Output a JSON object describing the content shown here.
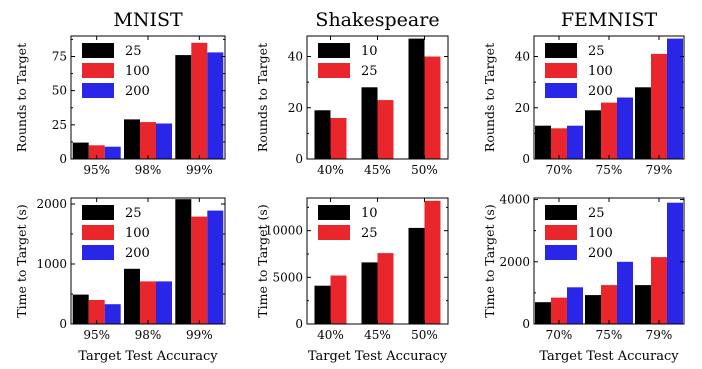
{
  "colors": {
    "black": "#000000",
    "red": "#e8262b",
    "blue": "#2a26e8"
  },
  "chart_data": [
    {
      "type": "bar",
      "title": "MNIST",
      "ylabel": "Rounds to Target",
      "xlabel": "",
      "categories": [
        "95%",
        "98%",
        "99%"
      ],
      "series": [
        {
          "name": "25",
          "values": [
            12,
            29,
            76
          ]
        },
        {
          "name": "100",
          "values": [
            10,
            27,
            85
          ]
        },
        {
          "name": "200",
          "values": [
            9,
            26,
            78
          ]
        }
      ],
      "ylim": [
        0,
        90
      ],
      "yticks": [
        0,
        25,
        50,
        75
      ],
      "legend": "top-left"
    },
    {
      "type": "bar",
      "title": "Shakespeare",
      "ylabel": "Rounds to Target",
      "xlabel": "",
      "categories": [
        "40%",
        "45%",
        "50%"
      ],
      "series": [
        {
          "name": "10",
          "values": [
            19,
            28,
            47
          ]
        },
        {
          "name": "25",
          "values": [
            16,
            23,
            40
          ]
        }
      ],
      "ylim": [
        0,
        48
      ],
      "yticks": [
        0,
        20,
        40
      ],
      "legend": "top-left"
    },
    {
      "type": "bar",
      "title": "FEMNIST",
      "ylabel": "Rounds to Target",
      "xlabel": "",
      "categories": [
        "70%",
        "75%",
        "79%"
      ],
      "series": [
        {
          "name": "25",
          "values": [
            13,
            19,
            28
          ]
        },
        {
          "name": "100",
          "values": [
            12,
            22,
            41
          ]
        },
        {
          "name": "200",
          "values": [
            13,
            24,
            47
          ]
        }
      ],
      "ylim": [
        0,
        48
      ],
      "yticks": [
        0,
        20,
        40
      ],
      "legend": "top-left"
    },
    {
      "type": "bar",
      "title": "",
      "ylabel": "Time to Target (s)",
      "xlabel": "Target Test Accuracy",
      "categories": [
        "95%",
        "98%",
        "99%"
      ],
      "series": [
        {
          "name": "25",
          "values": [
            490,
            920,
            2080
          ]
        },
        {
          "name": "100",
          "values": [
            400,
            710,
            1790
          ]
        },
        {
          "name": "200",
          "values": [
            330,
            710,
            1890
          ]
        }
      ],
      "ylim": [
        0,
        2100
      ],
      "yticks": [
        0,
        1000,
        2000
      ],
      "legend": "top-left"
    },
    {
      "type": "bar",
      "title": "",
      "ylabel": "Time to Target (s)",
      "xlabel": "Target Test Accuracy",
      "categories": [
        "40%",
        "45%",
        "50%"
      ],
      "series": [
        {
          "name": "10",
          "values": [
            4100,
            6600,
            10300
          ]
        },
        {
          "name": "25",
          "values": [
            5200,
            7600,
            13200
          ]
        }
      ],
      "ylim": [
        0,
        13500
      ],
      "yticks": [
        0,
        5000,
        10000
      ],
      "legend": "top-left"
    },
    {
      "type": "bar",
      "title": "",
      "ylabel": "Time to Target (s)",
      "xlabel": "Target Test Accuracy",
      "categories": [
        "70%",
        "75%",
        "79%"
      ],
      "series": [
        {
          "name": "25",
          "values": [
            700,
            930,
            1250
          ]
        },
        {
          "name": "100",
          "values": [
            850,
            1250,
            2150
          ]
        },
        {
          "name": "200",
          "values": [
            1180,
            2000,
            3900
          ]
        }
      ],
      "ylim": [
        0,
        4050
      ],
      "yticks": [
        0,
        2000,
        4000
      ],
      "legend": "top-left"
    }
  ]
}
